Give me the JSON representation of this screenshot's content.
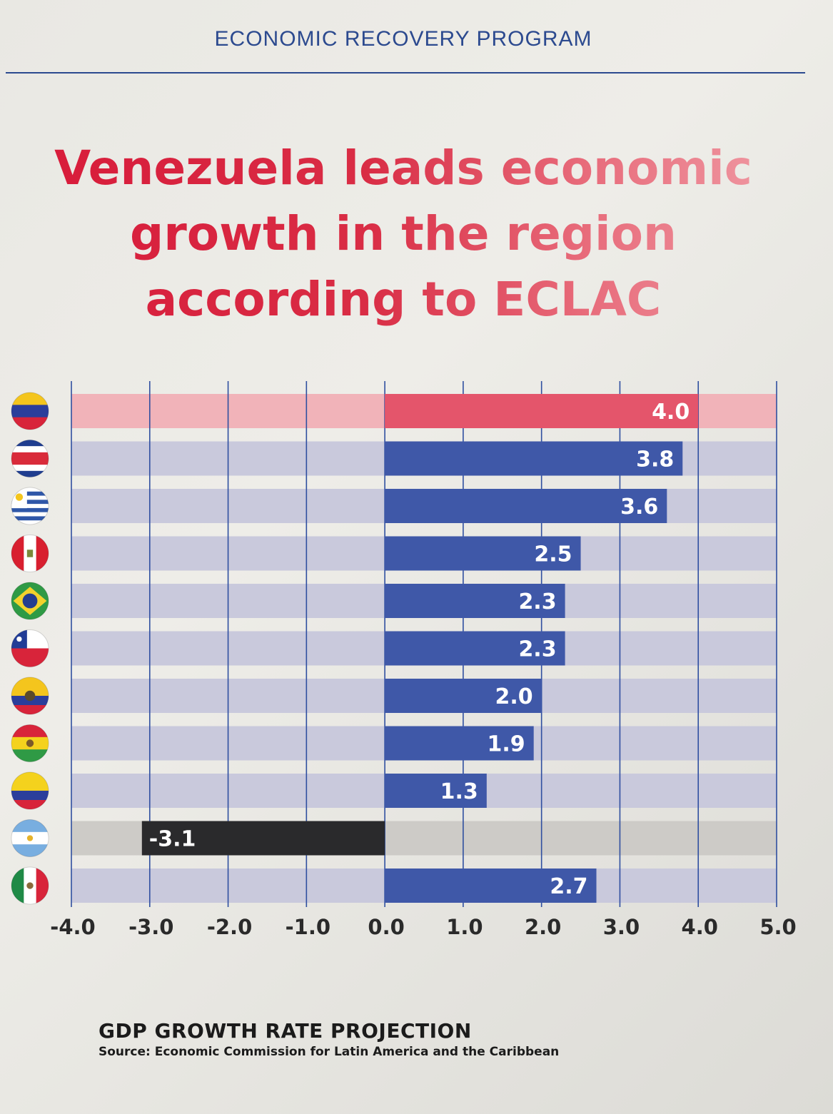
{
  "header": {
    "program": "ECONOMIC RECOVERY PROGRAM"
  },
  "headline": {
    "line1": "Venezuela leads economic",
    "line2": "growth in the region",
    "line3": "according to ECLAC"
  },
  "chart_data": {
    "type": "bar",
    "orientation": "horizontal",
    "categories": [
      "Venezuela",
      "Costa Rica",
      "Uruguay",
      "Peru",
      "Brazil",
      "Chile",
      "Ecuador",
      "Bolivia",
      "Colombia",
      "Argentina",
      "Mexico"
    ],
    "values": [
      4.0,
      3.8,
      3.6,
      2.5,
      2.3,
      2.3,
      2.0,
      1.9,
      1.3,
      -3.1,
      2.7
    ],
    "value_labels": [
      "4.0",
      "3.8",
      "3.6",
      "2.5",
      "2.3",
      "2.3",
      "2.0",
      "1.9",
      "1.3",
      "-3.1",
      "2.7"
    ],
    "x_ticks": [
      "-4.0",
      "-3.0",
      "-2.0",
      "-1.0",
      "0.0",
      "1.0",
      "2.0",
      "3.0",
      "4.0",
      "5.0"
    ],
    "xlim": [
      -4.0,
      5.0
    ],
    "grid": "vertical",
    "category_markers": "country flags",
    "colors": {
      "highlight": "#e4556b",
      "highlight_track": "#f1b3b9",
      "positive": "#3f58a8",
      "positive_track": "#c9c9dc",
      "negative": "#2a2a2c",
      "negative_track": "#cdcbc7",
      "grid": "#2f4fa0"
    }
  },
  "footer": {
    "title": "GDP GROWTH RATE PROJECTION",
    "source": "Source: Economic Commission for Latin America and the Caribbean"
  }
}
